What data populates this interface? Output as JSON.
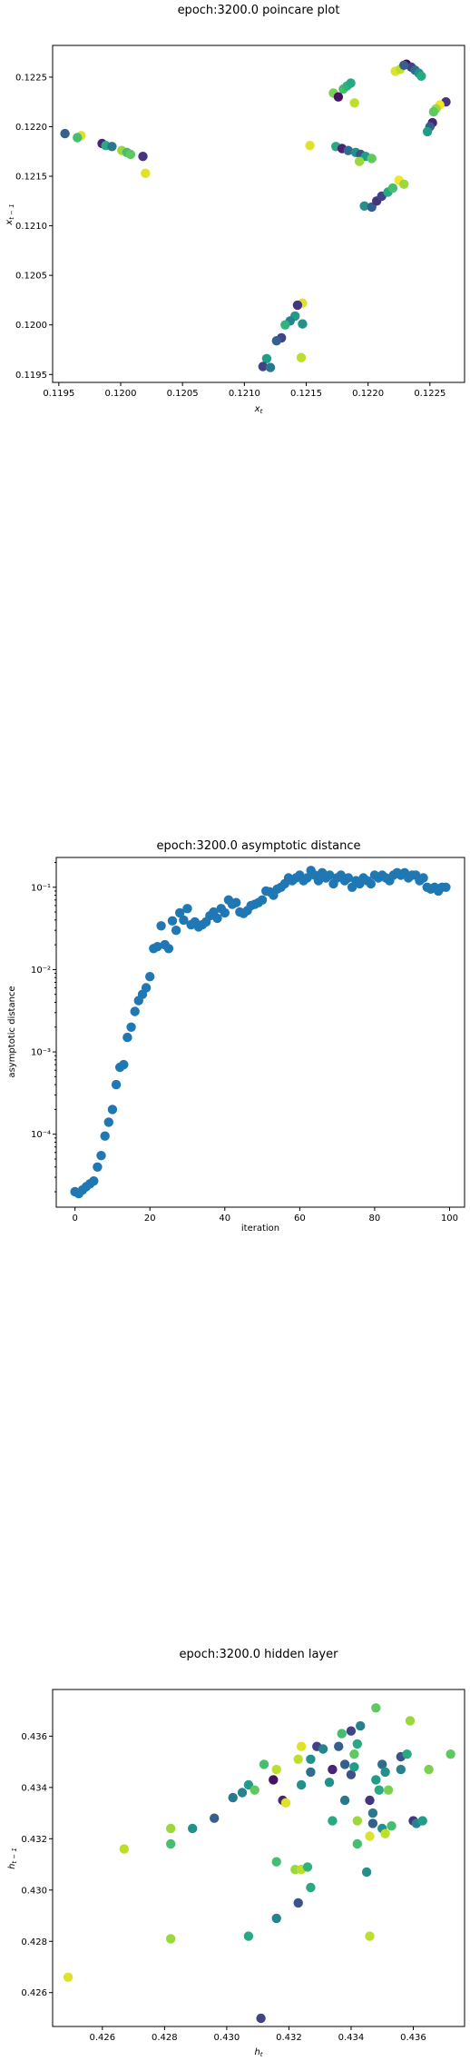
{
  "chart_data": [
    {
      "type": "scatter",
      "title": "epoch:3200.0 poincare plot",
      "xlabel": "x_t",
      "ylabel": "x_{t-1}",
      "xlim": [
        0.11945,
        0.12278
      ],
      "ylim": [
        0.11942,
        0.12282
      ],
      "xticks": [
        "0.1195",
        "0.1200",
        "0.1205",
        "0.1210",
        "0.1215",
        "0.1220",
        "0.1225"
      ],
      "xtick_values": [
        0.1195,
        0.12,
        0.1205,
        0.121,
        0.1215,
        0.122,
        0.1225
      ],
      "yticks": [
        "0.1195",
        "0.1200",
        "0.1205",
        "0.1210",
        "0.1215",
        "0.1220",
        "0.1225"
      ],
      "ytick_values": [
        0.1195,
        0.12,
        0.1205,
        0.121,
        0.1215,
        0.122,
        0.1225
      ],
      "colormap": "viridis",
      "points": [
        [
          0.12231,
          0.12263,
          0.02
        ],
        [
          0.12235,
          0.1226,
          0.2
        ],
        [
          0.12238,
          0.12257,
          0.35
        ],
        [
          0.12241,
          0.12254,
          0.5
        ],
        [
          0.12243,
          0.12251,
          0.6
        ],
        [
          0.12222,
          0.12256,
          0.95
        ],
        [
          0.12226,
          0.12258,
          0.9
        ],
        [
          0.12229,
          0.12262,
          0.3
        ],
        [
          0.12263,
          0.12225,
          0.15
        ],
        [
          0.12258,
          0.12222,
          0.98
        ],
        [
          0.12255,
          0.12218,
          0.85
        ],
        [
          0.12253,
          0.12215,
          0.75
        ],
        [
          0.12252,
          0.12204,
          0.1
        ],
        [
          0.1225,
          0.122,
          0.3
        ],
        [
          0.12248,
          0.12195,
          0.55
        ],
        [
          0.12172,
          0.12234,
          0.8
        ],
        [
          0.12176,
          0.1223,
          0.05
        ],
        [
          0.1218,
          0.12238,
          0.7
        ],
        [
          0.12183,
          0.12241,
          0.65
        ],
        [
          0.12186,
          0.12244,
          0.6
        ],
        [
          0.12189,
          0.12224,
          0.9
        ],
        [
          0.11955,
          0.12193,
          0.3
        ],
        [
          0.11968,
          0.12191,
          0.95
        ],
        [
          0.11965,
          0.12189,
          0.7
        ],
        [
          0.11985,
          0.12183,
          0.1
        ],
        [
          0.11988,
          0.12181,
          0.6
        ],
        [
          0.11993,
          0.1218,
          0.4
        ],
        [
          0.12001,
          0.12176,
          0.85
        ],
        [
          0.12005,
          0.12174,
          0.7
        ],
        [
          0.12008,
          0.12172,
          0.75
        ],
        [
          0.12018,
          0.1217,
          0.15
        ],
        [
          0.1202,
          0.12153,
          0.95
        ],
        [
          0.12153,
          0.12181,
          0.95
        ],
        [
          0.12174,
          0.1218,
          0.6
        ],
        [
          0.12179,
          0.12178,
          0.1
        ],
        [
          0.12184,
          0.12176,
          0.35
        ],
        [
          0.1219,
          0.12174,
          0.5
        ],
        [
          0.12194,
          0.12172,
          0.25
        ],
        [
          0.12198,
          0.1217,
          0.55
        ],
        [
          0.12203,
          0.12168,
          0.75
        ],
        [
          0.12193,
          0.12165,
          0.85
        ],
        [
          0.12197,
          0.1212,
          0.5
        ],
        [
          0.12203,
          0.12119,
          0.3
        ],
        [
          0.12207,
          0.12125,
          0.15
        ],
        [
          0.12211,
          0.1213,
          0.2
        ],
        [
          0.12216,
          0.12134,
          0.6
        ],
        [
          0.1222,
          0.12138,
          0.7
        ],
        [
          0.12225,
          0.12146,
          0.98
        ],
        [
          0.12229,
          0.12142,
          0.85
        ],
        [
          0.12147,
          0.12022,
          0.95
        ],
        [
          0.12143,
          0.1202,
          0.15
        ],
        [
          0.12141,
          0.12009,
          0.55
        ],
        [
          0.12137,
          0.12004,
          0.45
        ],
        [
          0.12133,
          0.12,
          0.65
        ],
        [
          0.1213,
          0.11987,
          0.2
        ],
        [
          0.12126,
          0.11984,
          0.3
        ],
        [
          0.12118,
          0.11966,
          0.55
        ],
        [
          0.12115,
          0.11958,
          0.2
        ],
        [
          0.12121,
          0.11957,
          0.4
        ],
        [
          0.12146,
          0.11967,
          0.9
        ],
        [
          0.12147,
          0.12001,
          0.5
        ]
      ]
    },
    {
      "type": "scatter",
      "title": "epoch:3200.0 asymptotic distance",
      "xlabel": "iteration",
      "ylabel": "asymptotic distance",
      "yscale": "log",
      "xlim": [
        -5,
        104
      ],
      "ylim": [
        1.3e-05,
        0.23
      ],
      "xticks": [
        "0",
        "20",
        "40",
        "60",
        "80",
        "100"
      ],
      "xtick_values": [
        0,
        20,
        40,
        60,
        80,
        100
      ],
      "yticks": [
        "10⁻⁴",
        "10⁻³",
        "10⁻²",
        "10⁻¹"
      ],
      "ytick_values": [
        0.0001,
        0.001,
        0.01,
        0.1
      ],
      "color": "#1f77b4",
      "x": [
        0,
        1,
        2,
        3,
        4,
        5,
        6,
        7,
        8,
        9,
        10,
        11,
        12,
        13,
        14,
        15,
        16,
        17,
        18,
        19,
        20,
        21,
        22,
        23,
        24,
        25,
        26,
        27,
        28,
        29,
        30,
        31,
        32,
        33,
        34,
        35,
        36,
        37,
        38,
        39,
        40,
        41,
        42,
        43,
        44,
        45,
        46,
        47,
        48,
        49,
        50,
        51,
        52,
        53,
        54,
        55,
        56,
        57,
        58,
        59,
        60,
        61,
        62,
        63,
        64,
        65,
        66,
        67,
        68,
        69,
        70,
        71,
        72,
        73,
        74,
        75,
        76,
        77,
        78,
        79,
        80,
        81,
        82,
        83,
        84,
        85,
        86,
        87,
        88,
        89,
        90,
        91,
        92,
        93,
        94,
        95,
        96,
        97,
        98,
        99
      ],
      "y": [
        2e-05,
        1.9e-05,
        2.1e-05,
        2.3e-05,
        2.5e-05,
        2.7e-05,
        4e-05,
        5.5e-05,
        9.5e-05,
        0.00014,
        0.0002,
        0.0004,
        0.00065,
        0.0007,
        0.0015,
        0.002,
        0.0031,
        0.0042,
        0.005,
        0.006,
        0.0082,
        0.018,
        0.019,
        0.034,
        0.02,
        0.018,
        0.039,
        0.03,
        0.049,
        0.04,
        0.055,
        0.035,
        0.038,
        0.033,
        0.035,
        0.038,
        0.045,
        0.05,
        0.042,
        0.055,
        0.049,
        0.07,
        0.062,
        0.065,
        0.05,
        0.048,
        0.052,
        0.06,
        0.062,
        0.065,
        0.07,
        0.09,
        0.088,
        0.08,
        0.095,
        0.1,
        0.11,
        0.13,
        0.12,
        0.13,
        0.14,
        0.12,
        0.13,
        0.16,
        0.14,
        0.12,
        0.15,
        0.13,
        0.14,
        0.11,
        0.13,
        0.14,
        0.12,
        0.13,
        0.1,
        0.12,
        0.11,
        0.13,
        0.12,
        0.11,
        0.14,
        0.13,
        0.14,
        0.13,
        0.12,
        0.14,
        0.15,
        0.14,
        0.15,
        0.13,
        0.14,
        0.14,
        0.12,
        0.13,
        0.1,
        0.095,
        0.1,
        0.09,
        0.1,
        0.1
      ]
    },
    {
      "type": "scatter",
      "title": "epoch:3200.0 hidden layer",
      "xlabel": "h_t",
      "ylabel": "h_{t-1}",
      "xlim": [
        0.4244,
        0.43765
      ],
      "ylim": [
        0.42468,
        0.43782
      ],
      "xticks": [
        "0.426",
        "0.428",
        "0.430",
        "0.432",
        "0.434",
        "0.436"
      ],
      "xtick_values": [
        0.426,
        0.428,
        0.43,
        0.432,
        0.434,
        0.436
      ],
      "yticks": [
        "0.426",
        "0.428",
        "0.430",
        "0.432",
        "0.434",
        "0.436"
      ],
      "ytick_values": [
        0.426,
        0.428,
        0.43,
        0.432,
        0.434,
        0.436
      ],
      "colormap": "viridis",
      "points": [
        [
          0.4249,
          0.4266,
          0.95
        ],
        [
          0.4267,
          0.4316,
          0.9
        ],
        [
          0.4282,
          0.4281,
          0.85
        ],
        [
          0.4282,
          0.4318,
          0.7
        ],
        [
          0.4282,
          0.4324,
          0.85
        ],
        [
          0.4289,
          0.4324,
          0.5
        ],
        [
          0.4296,
          0.4328,
          0.3
        ],
        [
          0.4302,
          0.4336,
          0.4
        ],
        [
          0.4305,
          0.4338,
          0.45
        ],
        [
          0.4307,
          0.4341,
          0.55
        ],
        [
          0.4309,
          0.4339,
          0.75
        ],
        [
          0.4307,
          0.4282,
          0.6
        ],
        [
          0.4311,
          0.425,
          0.2
        ],
        [
          0.4312,
          0.4349,
          0.7
        ],
        [
          0.4315,
          0.4343,
          0.05
        ],
        [
          0.4316,
          0.4347,
          0.9
        ],
        [
          0.4316,
          0.4311,
          0.7
        ],
        [
          0.4316,
          0.4289,
          0.45
        ],
        [
          0.4318,
          0.4335,
          0.1
        ],
        [
          0.4319,
          0.4334,
          0.95
        ],
        [
          0.4322,
          0.4308,
          0.85
        ],
        [
          0.4323,
          0.4295,
          0.25
        ],
        [
          0.4324,
          0.4341,
          0.5
        ],
        [
          0.4323,
          0.4351,
          0.9
        ],
        [
          0.4324,
          0.4356,
          0.95
        ],
        [
          0.4324,
          0.4308,
          0.9
        ],
        [
          0.4326,
          0.4309,
          0.65
        ],
        [
          0.4327,
          0.4346,
          0.35
        ],
        [
          0.4327,
          0.4301,
          0.6
        ],
        [
          0.4327,
          0.4351,
          0.5
        ],
        [
          0.4329,
          0.4356,
          0.2
        ],
        [
          0.4331,
          0.4355,
          0.45
        ],
        [
          0.4333,
          0.4342,
          0.5
        ],
        [
          0.4334,
          0.4347,
          0.1
        ],
        [
          0.4334,
          0.4327,
          0.6
        ],
        [
          0.4336,
          0.4356,
          0.3
        ],
        [
          0.4337,
          0.4361,
          0.7
        ],
        [
          0.4338,
          0.4335,
          0.4
        ],
        [
          0.4338,
          0.4349,
          0.3
        ],
        [
          0.434,
          0.4362,
          0.2
        ],
        [
          0.434,
          0.4345,
          0.25
        ],
        [
          0.4341,
          0.4348,
          0.55
        ],
        [
          0.4341,
          0.4353,
          0.75
        ],
        [
          0.4342,
          0.4357,
          0.6
        ],
        [
          0.4342,
          0.4327,
          0.85
        ],
        [
          0.4342,
          0.4318,
          0.7
        ],
        [
          0.4343,
          0.4364,
          0.45
        ],
        [
          0.4345,
          0.4307,
          0.5
        ],
        [
          0.4346,
          0.4282,
          0.9
        ],
        [
          0.4346,
          0.4321,
          0.95
        ],
        [
          0.4346,
          0.4335,
          0.15
        ],
        [
          0.4347,
          0.433,
          0.4
        ],
        [
          0.4347,
          0.4326,
          0.3
        ],
        [
          0.4348,
          0.4371,
          0.75
        ],
        [
          0.4348,
          0.4343,
          0.55
        ],
        [
          0.4349,
          0.4339,
          0.6
        ],
        [
          0.435,
          0.4324,
          0.5
        ],
        [
          0.435,
          0.4349,
          0.35
        ],
        [
          0.4351,
          0.4346,
          0.5
        ],
        [
          0.4351,
          0.4322,
          0.9
        ],
        [
          0.4352,
          0.4339,
          0.8
        ],
        [
          0.4353,
          0.4325,
          0.7
        ],
        [
          0.4356,
          0.4352,
          0.25
        ],
        [
          0.4356,
          0.4347,
          0.45
        ],
        [
          0.4358,
          0.4353,
          0.6
        ],
        [
          0.436,
          0.4327,
          0.15
        ],
        [
          0.4359,
          0.4366,
          0.85
        ],
        [
          0.4361,
          0.4326,
          0.45
        ],
        [
          0.4363,
          0.4327,
          0.55
        ],
        [
          0.4365,
          0.4347,
          0.8
        ],
        [
          0.4372,
          0.4353,
          0.75
        ]
      ]
    }
  ]
}
